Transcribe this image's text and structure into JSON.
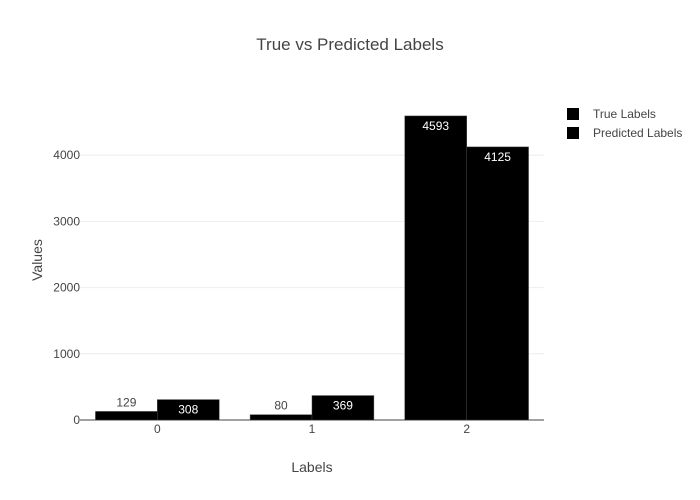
{
  "chart_data": {
    "type": "bar",
    "title": "True vs Predicted Labels",
    "xlabel": "Labels",
    "ylabel": "Values",
    "categories": [
      "0",
      "1",
      "2"
    ],
    "series": [
      {
        "name": "True Labels",
        "values": [
          129,
          80,
          4593
        ],
        "color": "#000000"
      },
      {
        "name": "Predicted Labels",
        "values": [
          308,
          369,
          4125
        ],
        "color": "#000000"
      }
    ],
    "ylim": [
      0,
      4600
    ],
    "yticks": [
      0,
      1000,
      2000,
      3000,
      4000
    ],
    "grid": true,
    "legend": "top-right",
    "data_labels": true
  }
}
